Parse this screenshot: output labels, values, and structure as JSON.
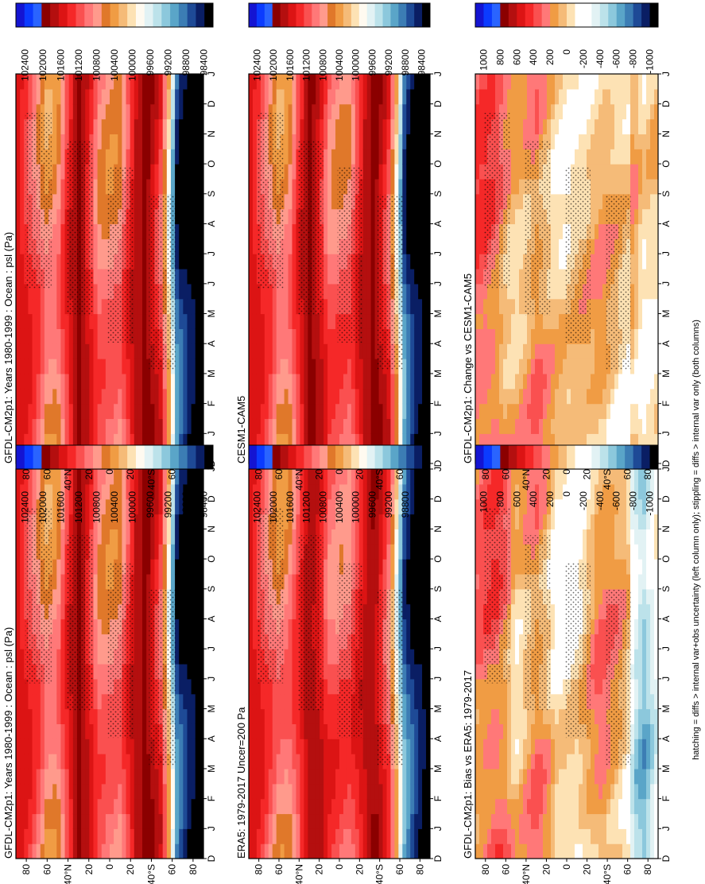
{
  "figure": {
    "footnote": "hatching = diffs > internal var+obs uncertainty (left column only); stippling = diffs > internal var only (both columns)"
  },
  "colorbars": {
    "psl": {
      "labels": [
        "102400",
        "102000",
        "101600",
        "101200",
        "100800",
        "100400",
        "100000",
        "99600",
        "99200",
        "98800",
        "98400"
      ],
      "colors": [
        "#1414d2",
        "#0b3bff",
        "#2a64ff",
        "#8b0000",
        "#b40f0f",
        "#dc1414",
        "#f52828",
        "#fa5050",
        "#ff7878",
        "#ff9a8c",
        "#e0782a",
        "#f09c44",
        "#f5bb78",
        "#fde2b4",
        "#fffaf0",
        "#e2f2f4",
        "#bce2ea",
        "#8cc8dc",
        "#5aa5c8",
        "#3c7db4",
        "#1e4a96",
        "#0a1e64",
        "#000000"
      ]
    },
    "diff": {
      "labels": [
        "1000",
        "800",
        "600",
        "400",
        "200",
        "0",
        "-200",
        "-400",
        "-600",
        "-800",
        "-1000"
      ],
      "colors": [
        "#1414d2",
        "#0b3bff",
        "#2a64ff",
        "#8b0000",
        "#b40f0f",
        "#dc1414",
        "#f52828",
        "#fa5050",
        "#ff7878",
        "#f09c44",
        "#f5bb78",
        "#fde2b4",
        "#ffffff",
        "#ffffff",
        "#e2f2f4",
        "#bce2ea",
        "#8cc8dc",
        "#5aa5c8",
        "#3c7db4",
        "#1e4a96",
        "#0a1e64",
        "#000000"
      ]
    }
  },
  "chart_data": [
    {
      "type": "heatmap",
      "title": "GFDL-CM2p1: Years 1980-1999 : Ocean : psl (Pa)",
      "x_ticks": [
        "D",
        "J",
        "F",
        "M",
        "A",
        "M",
        "J",
        "J",
        "A",
        "S",
        "O",
        "N",
        "D",
        "J"
      ],
      "y_ticks": [
        "80",
        "60",
        "40°N",
        "20",
        "0",
        "20",
        "40°S",
        "60",
        "80"
      ],
      "colorbar": "psl",
      "lat_profile": [
        [
          -90,
          98400
        ],
        [
          -75,
          98500
        ],
        [
          -65,
          98800
        ],
        [
          -60,
          99600
        ],
        [
          -50,
          101200
        ],
        [
          -35,
          101800
        ],
        [
          -25,
          101600
        ],
        [
          -10,
          100800
        ],
        [
          0,
          100800
        ],
        [
          10,
          100900
        ],
        [
          20,
          101400
        ],
        [
          30,
          101800
        ],
        [
          40,
          101300
        ],
        [
          50,
          100700
        ],
        [
          60,
          100600
        ],
        [
          70,
          101000
        ],
        [
          80,
          101300
        ],
        [
          90,
          101500
        ]
      ]
    },
    {
      "type": "heatmap",
      "title": "GFDL-CM2p1: Years 1980-1999 : Ocean : psl (Pa)",
      "x_ticks": [
        "D",
        "J",
        "F",
        "M",
        "A",
        "M",
        "J",
        "J",
        "A",
        "S",
        "O",
        "N",
        "D",
        "J"
      ],
      "y_ticks": [
        "80",
        "60",
        "40°N",
        "20",
        "0",
        "20",
        "40°S",
        "60",
        "80"
      ],
      "colorbar": "psl",
      "lat_profile": [
        [
          -90,
          98400
        ],
        [
          -75,
          98500
        ],
        [
          -65,
          98800
        ],
        [
          -60,
          99600
        ],
        [
          -50,
          101200
        ],
        [
          -35,
          101800
        ],
        [
          -25,
          101600
        ],
        [
          -10,
          100800
        ],
        [
          0,
          100800
        ],
        [
          10,
          100900
        ],
        [
          20,
          101400
        ],
        [
          30,
          101800
        ],
        [
          40,
          101300
        ],
        [
          50,
          100700
        ],
        [
          60,
          100600
        ],
        [
          70,
          101000
        ],
        [
          80,
          101300
        ],
        [
          90,
          101500
        ]
      ]
    },
    {
      "type": "heatmap",
      "title": "ERA5: 1979-2017 Uncer=200 Pa",
      "x_ticks": [
        "D",
        "J",
        "F",
        "M",
        "A",
        "M",
        "J",
        "J",
        "A",
        "S",
        "O",
        "N",
        "D",
        "J"
      ],
      "y_ticks": [
        "80",
        "60",
        "40°N",
        "20",
        "0",
        "20",
        "40°S",
        "60",
        "80"
      ],
      "colorbar": "psl",
      "lat_profile": [
        [
          -90,
          98400
        ],
        [
          -75,
          98600
        ],
        [
          -65,
          99000
        ],
        [
          -60,
          99600
        ],
        [
          -50,
          101000
        ],
        [
          -35,
          101700
        ],
        [
          -25,
          101500
        ],
        [
          -10,
          101000
        ],
        [
          0,
          101000
        ],
        [
          10,
          101100
        ],
        [
          20,
          101500
        ],
        [
          30,
          101700
        ],
        [
          40,
          101200
        ],
        [
          50,
          100800
        ],
        [
          60,
          100700
        ],
        [
          70,
          101000
        ],
        [
          80,
          101300
        ],
        [
          90,
          101500
        ]
      ]
    },
    {
      "type": "heatmap",
      "title": "CESM1-CAM5",
      "x_ticks": [
        "D",
        "J",
        "F",
        "M",
        "A",
        "M",
        "J",
        "J",
        "A",
        "S",
        "O",
        "N",
        "D",
        "J"
      ],
      "y_ticks": [
        "80",
        "60",
        "40°N",
        "20",
        "0",
        "20",
        "40°S",
        "60",
        "80"
      ],
      "colorbar": "psl",
      "lat_profile": [
        [
          -90,
          98400
        ],
        [
          -75,
          98500
        ],
        [
          -65,
          98900
        ],
        [
          -60,
          99700
        ],
        [
          -50,
          101200
        ],
        [
          -35,
          101800
        ],
        [
          -25,
          101600
        ],
        [
          -10,
          100900
        ],
        [
          0,
          100900
        ],
        [
          10,
          101000
        ],
        [
          20,
          101500
        ],
        [
          30,
          101800
        ],
        [
          40,
          101300
        ],
        [
          50,
          100700
        ],
        [
          60,
          100600
        ],
        [
          70,
          101000
        ],
        [
          80,
          101300
        ],
        [
          90,
          101500
        ]
      ]
    },
    {
      "type": "heatmap",
      "title": "GFDL-CM2p1: Bias vs ERA5: 1979-2017",
      "x_ticks": [
        "D",
        "J",
        "F",
        "M",
        "A",
        "M",
        "J",
        "J",
        "A",
        "S",
        "O",
        "N",
        "D",
        "J"
      ],
      "y_ticks": [
        "80",
        "60",
        "40°N",
        "20",
        "0",
        "20",
        "40°S",
        "60",
        "80"
      ],
      "colorbar": "diff",
      "lat_profile": [
        [
          -90,
          -200
        ],
        [
          -75,
          -500
        ],
        [
          -65,
          -300
        ],
        [
          -60,
          0
        ],
        [
          -50,
          100
        ],
        [
          -35,
          200
        ],
        [
          -25,
          100
        ],
        [
          -10,
          -100
        ],
        [
          0,
          -100
        ],
        [
          10,
          -100
        ],
        [
          20,
          100
        ],
        [
          30,
          200
        ],
        [
          40,
          100
        ],
        [
          50,
          0
        ],
        [
          60,
          200
        ],
        [
          70,
          300
        ],
        [
          80,
          250
        ],
        [
          90,
          200
        ]
      ]
    },
    {
      "type": "heatmap",
      "title": "GFDL-CM2p1: Change vs CESM1-CAM5",
      "x_ticks": [
        "D",
        "J",
        "F",
        "M",
        "A",
        "M",
        "J",
        "J",
        "A",
        "S",
        "O",
        "N",
        "D",
        "J"
      ],
      "y_ticks": [
        "80",
        "60",
        "40°N",
        "20",
        "0",
        "20",
        "40°S",
        "60",
        "80"
      ],
      "colorbar": "diff",
      "lat_profile": [
        [
          -90,
          0
        ],
        [
          -75,
          -100
        ],
        [
          -65,
          100
        ],
        [
          -60,
          -100
        ],
        [
          -50,
          0
        ],
        [
          -35,
          100
        ],
        [
          -25,
          50
        ],
        [
          -10,
          0
        ],
        [
          0,
          -50
        ],
        [
          10,
          0
        ],
        [
          20,
          100
        ],
        [
          30,
          200
        ],
        [
          40,
          100
        ],
        [
          50,
          50
        ],
        [
          60,
          100
        ],
        [
          70,
          250
        ],
        [
          80,
          300
        ],
        [
          90,
          300
        ]
      ]
    }
  ]
}
